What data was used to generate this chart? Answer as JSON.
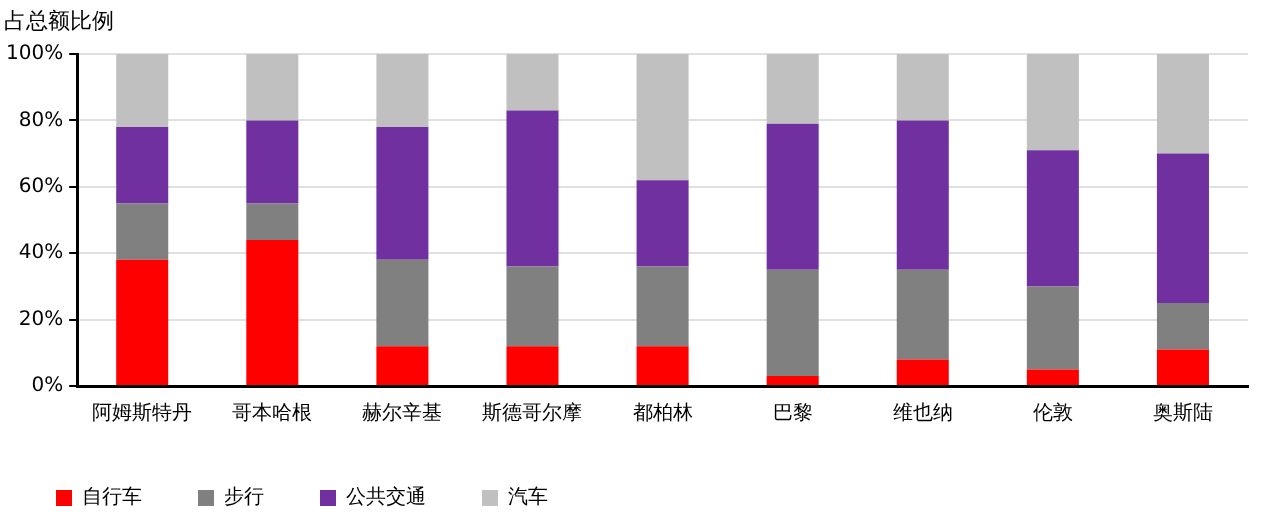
{
  "chart_data": {
    "type": "bar",
    "stacked": true,
    "ylabel": "占总额比例",
    "categories": [
      "阿姆斯特丹",
      "哥本哈根",
      "赫尔辛基",
      "斯德哥尔摩",
      "都柏林",
      "巴黎",
      "维也纳",
      "伦敦",
      "奥斯陆"
    ],
    "series": [
      {
        "name": "自行车",
        "color": "#ff0000",
        "values": [
          38,
          44,
          12,
          12,
          12,
          3,
          8,
          5,
          11
        ]
      },
      {
        "name": "步行",
        "color": "#808080",
        "values": [
          17,
          11,
          26,
          24,
          24,
          32,
          27,
          25,
          14
        ]
      },
      {
        "name": "公共交通",
        "color": "#7030a0",
        "values": [
          23,
          25,
          40,
          47,
          26,
          44,
          45,
          41,
          45
        ]
      },
      {
        "name": "汽车",
        "color": "#c0c0c0",
        "values": [
          22,
          20,
          22,
          17,
          38,
          21,
          20,
          29,
          30
        ]
      }
    ],
    "ylim": [
      0,
      100
    ],
    "yticks": [
      {
        "value": 0,
        "label": "0%"
      },
      {
        "value": 20,
        "label": "20%"
      },
      {
        "value": 40,
        "label": "40%"
      },
      {
        "value": 60,
        "label": "60%"
      },
      {
        "value": 80,
        "label": "80%"
      },
      {
        "value": 100,
        "label": "100%"
      }
    ],
    "grid": "y",
    "legend": "bottom"
  }
}
